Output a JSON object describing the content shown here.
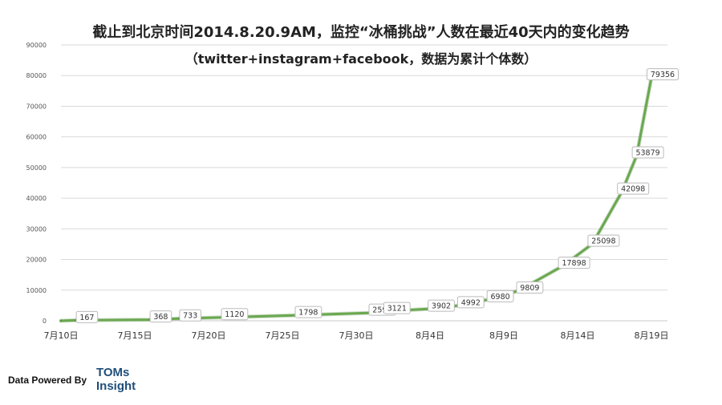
{
  "title": "截止到北京时间2014.8.20.9AM，监控“冰桶挑战”人数在最近40天内的变化趋势",
  "subtitle": "（twitter+instagram+facebook，数据为累计个体数）",
  "footer": {
    "powered_by": "Data Powered By",
    "brand_line1": "TOMs",
    "brand_line2": "Insight"
  },
  "chart_data": {
    "type": "line",
    "colors": {
      "line": "#6aa84f",
      "grid": "#d9d9d9",
      "axis_text": "#555555",
      "label_border": "#bbbbbb"
    },
    "grid": true,
    "ylim": [
      0,
      90000
    ],
    "yticks": [
      0,
      10000,
      20000,
      30000,
      40000,
      50000,
      60000,
      70000,
      80000,
      90000
    ],
    "xlim": [
      "2014-07-10",
      "2014-08-19"
    ],
    "xticks": [
      {
        "date": "2014-07-10",
        "label": "7月10日"
      },
      {
        "date": "2014-07-15",
        "label": "7月15日"
      },
      {
        "date": "2014-07-20",
        "label": "7月20日"
      },
      {
        "date": "2014-07-25",
        "label": "7月25日"
      },
      {
        "date": "2014-07-30",
        "label": "7月30日"
      },
      {
        "date": "2014-08-04",
        "label": "8月4日"
      },
      {
        "date": "2014-08-09",
        "label": "8月9日"
      },
      {
        "date": "2014-08-14",
        "label": "8月14日"
      },
      {
        "date": "2014-08-19",
        "label": "8月19日"
      }
    ],
    "series": [
      {
        "points": [
          {
            "x": "2014-07-10",
            "y": 0
          },
          {
            "x": "2014-07-11",
            "y": 167
          },
          {
            "x": "2014-07-16",
            "y": 368
          },
          {
            "x": "2014-07-18",
            "y": 733
          },
          {
            "x": "2014-07-21",
            "y": 1120
          },
          {
            "x": "2014-07-26",
            "y": 1798
          },
          {
            "x": "2014-07-31",
            "y": 2598
          },
          {
            "x": "2014-08-01",
            "y": 3121
          },
          {
            "x": "2014-08-04",
            "y": 3902
          },
          {
            "x": "2014-08-06",
            "y": 4992
          },
          {
            "x": "2014-08-08",
            "y": 6980
          },
          {
            "x": "2014-08-10",
            "y": 9809
          },
          {
            "x": "2014-08-13",
            "y": 17898
          },
          {
            "x": "2014-08-15",
            "y": 25098
          },
          {
            "x": "2014-08-17",
            "y": 42098
          },
          {
            "x": "2014-08-18",
            "y": 53879
          },
          {
            "x": "2014-08-19",
            "y": 79356
          }
        ],
        "data_labels": [
          {
            "x": "2014-07-11",
            "text": "167"
          },
          {
            "x": "2014-07-16",
            "text": "368"
          },
          {
            "x": "2014-07-18",
            "text": "733"
          },
          {
            "x": "2014-07-21",
            "text": "1120"
          },
          {
            "x": "2014-07-26",
            "text": "1798"
          },
          {
            "x": "2014-07-31",
            "text": "2598"
          },
          {
            "x": "2014-08-01",
            "text": "3121"
          },
          {
            "x": "2014-08-04",
            "text": "3902"
          },
          {
            "x": "2014-08-06",
            "text": "4992"
          },
          {
            "x": "2014-08-08",
            "text": "6980"
          },
          {
            "x": "2014-08-10",
            "text": "9809"
          },
          {
            "x": "2014-08-13",
            "text": "17898"
          },
          {
            "x": "2014-08-15",
            "text": "25098"
          },
          {
            "x": "2014-08-17",
            "text": "42098"
          },
          {
            "x": "2014-08-18",
            "text": "53879"
          },
          {
            "x": "2014-08-19",
            "text": "79356"
          }
        ]
      }
    ]
  }
}
